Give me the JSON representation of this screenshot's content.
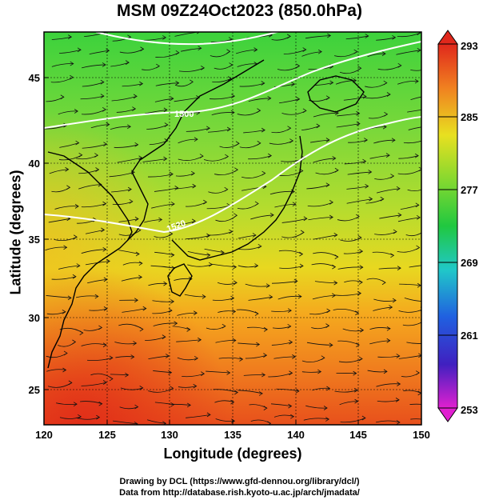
{
  "title": "MSM 09Z24Oct2023 (850.0hPa)",
  "xlabel": "Longitude (degrees)",
  "ylabel": "Latitude  (degrees)",
  "x_ticks": [
    "120",
    "125",
    "130",
    "135",
    "140",
    "145",
    "150"
  ],
  "y_ticks": [
    "45",
    "40",
    "35",
    "30",
    "25"
  ],
  "colorbar": {
    "labels": [
      "293",
      "285",
      "277",
      "269",
      "261",
      "253"
    ],
    "min": 253,
    "max": 293
  },
  "contour_labels": [
    "1500",
    "1520"
  ],
  "credits": {
    "line1": "Drawing by DCL (https://www.gfd-dennou.org/library/dcl/)",
    "line2": "Data from http://database.rish.kyoto-u.ac.jp/arch/jmadata/"
  }
}
